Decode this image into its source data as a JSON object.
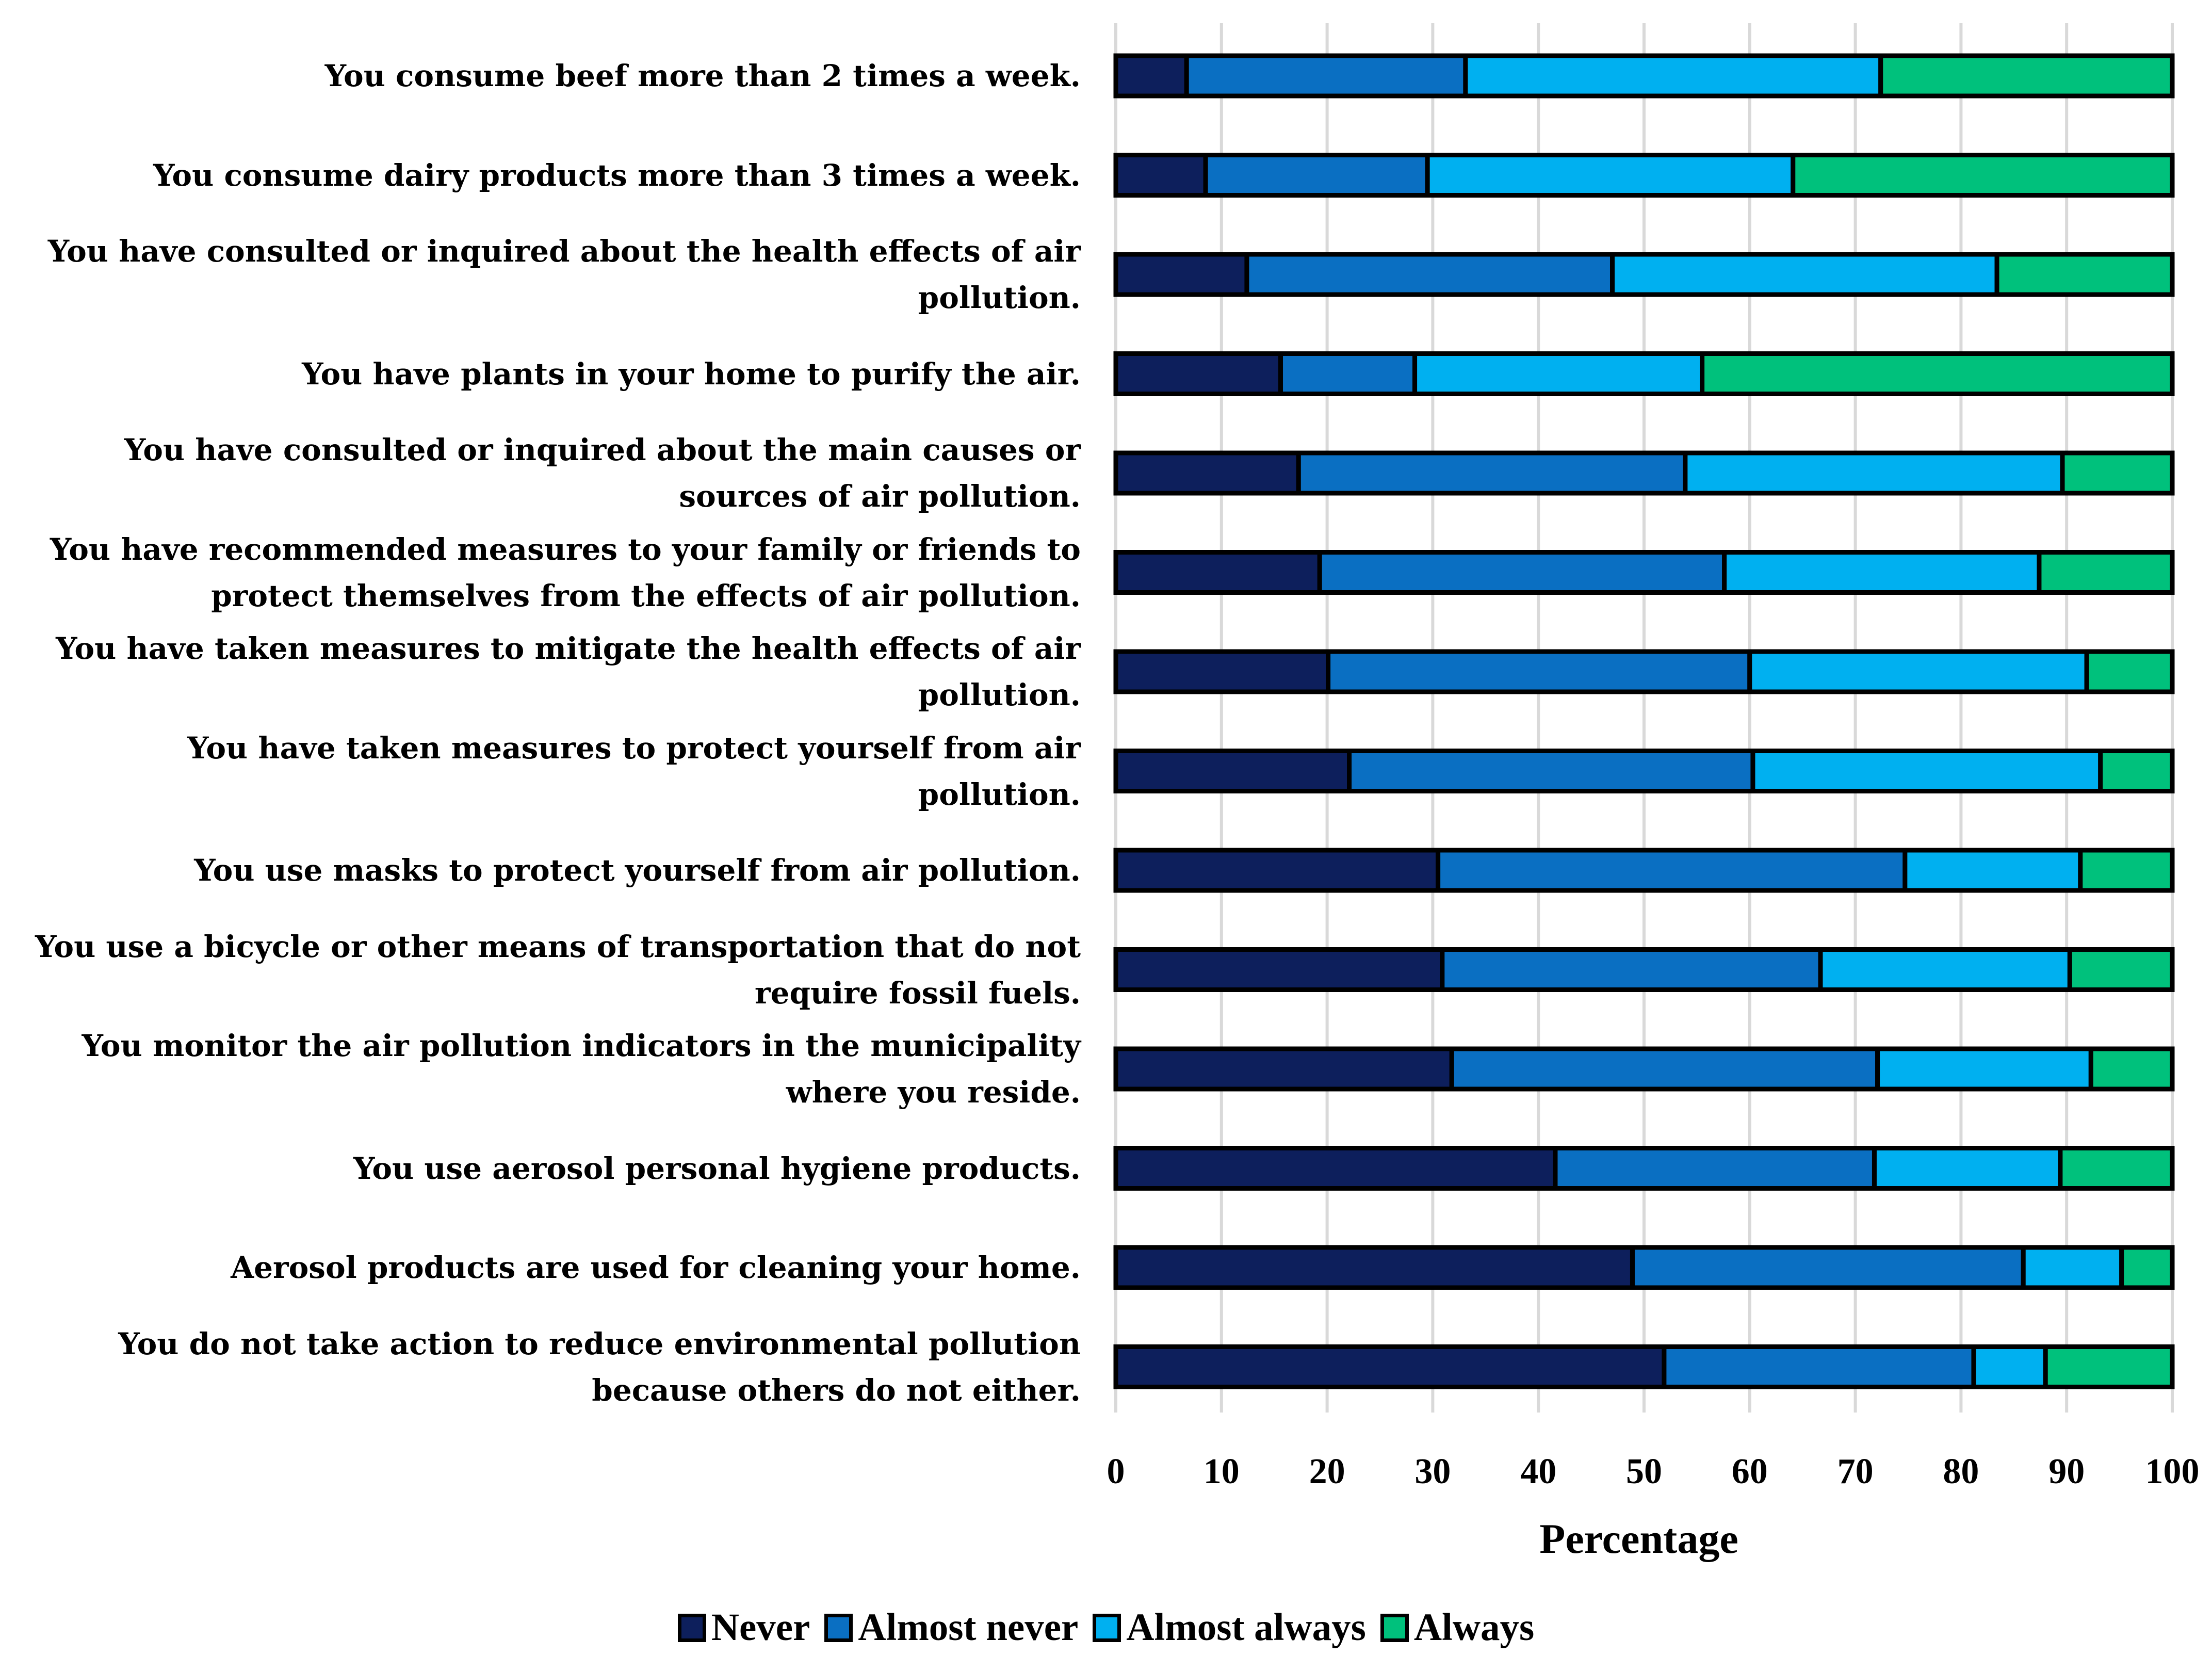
{
  "chart_data": {
    "type": "bar",
    "orientation": "horizontal",
    "stacked": true,
    "xlabel": "Percentage",
    "ylabel": "",
    "xlim": [
      0,
      100
    ],
    "xticks": [
      "0",
      "10",
      "20",
      "30",
      "40",
      "50",
      "60",
      "70",
      "80",
      "90",
      "100"
    ],
    "grid": "vertical",
    "legend_position": "bottom",
    "categories": [
      "You consume beef more than 2 times a week.",
      "You consume dairy products more than 3 times a week.",
      "You have consulted or inquired about the health effects of air pollution.",
      "You have plants in your home to purify the air.",
      "You have consulted or inquired about the main causes or sources of air pollution.",
      "You have recommended measures to your family or friends to protect themselves from the effects of air pollution.",
      "You have taken measures to mitigate the health effects of air pollution.",
      "You have taken measures to protect yourself from air pollution.",
      "You use masks to protect yourself from air pollution.",
      "You use a bicycle or other means of transportation that do not require fossil fuels.",
      "You monitor the air pollution indicators in the municipality where you reside.",
      "You use aerosol personal hygiene products.",
      "Aerosol products are used for cleaning your home.",
      "You do not take action to reduce environmental pollution because others do not either."
    ],
    "series": [
      {
        "name": "Never",
        "color": "#0d1f5c",
        "values": [
          6.7,
          8.5,
          12.4,
          15.6,
          17.3,
          19.3,
          20.1,
          22.1,
          30.5,
          30.9,
          31.8,
          41.6,
          48.9,
          51.9
        ]
      },
      {
        "name": "Almost never",
        "color": "#0a6fc2",
        "values": [
          26.4,
          21.0,
          34.6,
          12.7,
          36.6,
          38.3,
          39.9,
          38.2,
          44.2,
          35.8,
          40.3,
          30.2,
          37.0,
          29.3
        ]
      },
      {
        "name": "Almost always",
        "color": "#00b0f0",
        "values": [
          39.3,
          34.6,
          36.4,
          27.2,
          35.7,
          29.8,
          31.9,
          32.9,
          16.6,
          23.6,
          20.2,
          17.6,
          9.3,
          6.8
        ]
      },
      {
        "name": "Always",
        "color": "#00c17c",
        "values": [
          27.6,
          35.9,
          16.6,
          44.5,
          10.4,
          12.6,
          8.1,
          6.8,
          8.7,
          9.7,
          7.7,
          10.6,
          4.8,
          12.0
        ]
      }
    ]
  }
}
